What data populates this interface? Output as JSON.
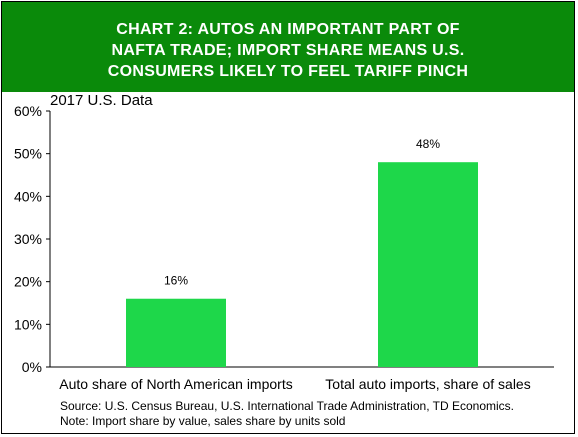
{
  "chart_data": {
    "type": "bar",
    "title": "CHART 2: AUTOS AN IMPORTANT PART OF NAFTA TRADE; IMPORT SHARE MEANS U.S. CONSUMERS LIKELY TO FEEL TARIFF PINCH",
    "title_lines": [
      "CHART 2: AUTOS AN IMPORTANT PART OF",
      "NAFTA TRADE; IMPORT SHARE MEANS U.S.",
      "CONSUMERS LIKELY TO FEEL TARIFF PINCH"
    ],
    "subtitle": "2017 U.S. Data",
    "categories": [
      "Auto share of North American imports",
      "Total auto imports, share of sales"
    ],
    "values": [
      16,
      48
    ],
    "data_labels": [
      "16%",
      "48%"
    ],
    "ylim": [
      0,
      60
    ],
    "yticks": [
      0,
      10,
      20,
      30,
      40,
      50,
      60
    ],
    "ytick_labels": [
      "0%",
      "10%",
      "20%",
      "30%",
      "40%",
      "50%",
      "60%"
    ],
    "xlabel": "",
    "ylabel": "",
    "grid": false,
    "colors": {
      "title_bg": "#0a8a0a",
      "bar": "#1ed74a",
      "title_text": "#ffffff"
    }
  },
  "footer": {
    "source": "Source: U.S. Census Bureau, U.S. International Trade Administration, TD Economics.",
    "note": "Note: Import share by value, sales share by units sold"
  }
}
